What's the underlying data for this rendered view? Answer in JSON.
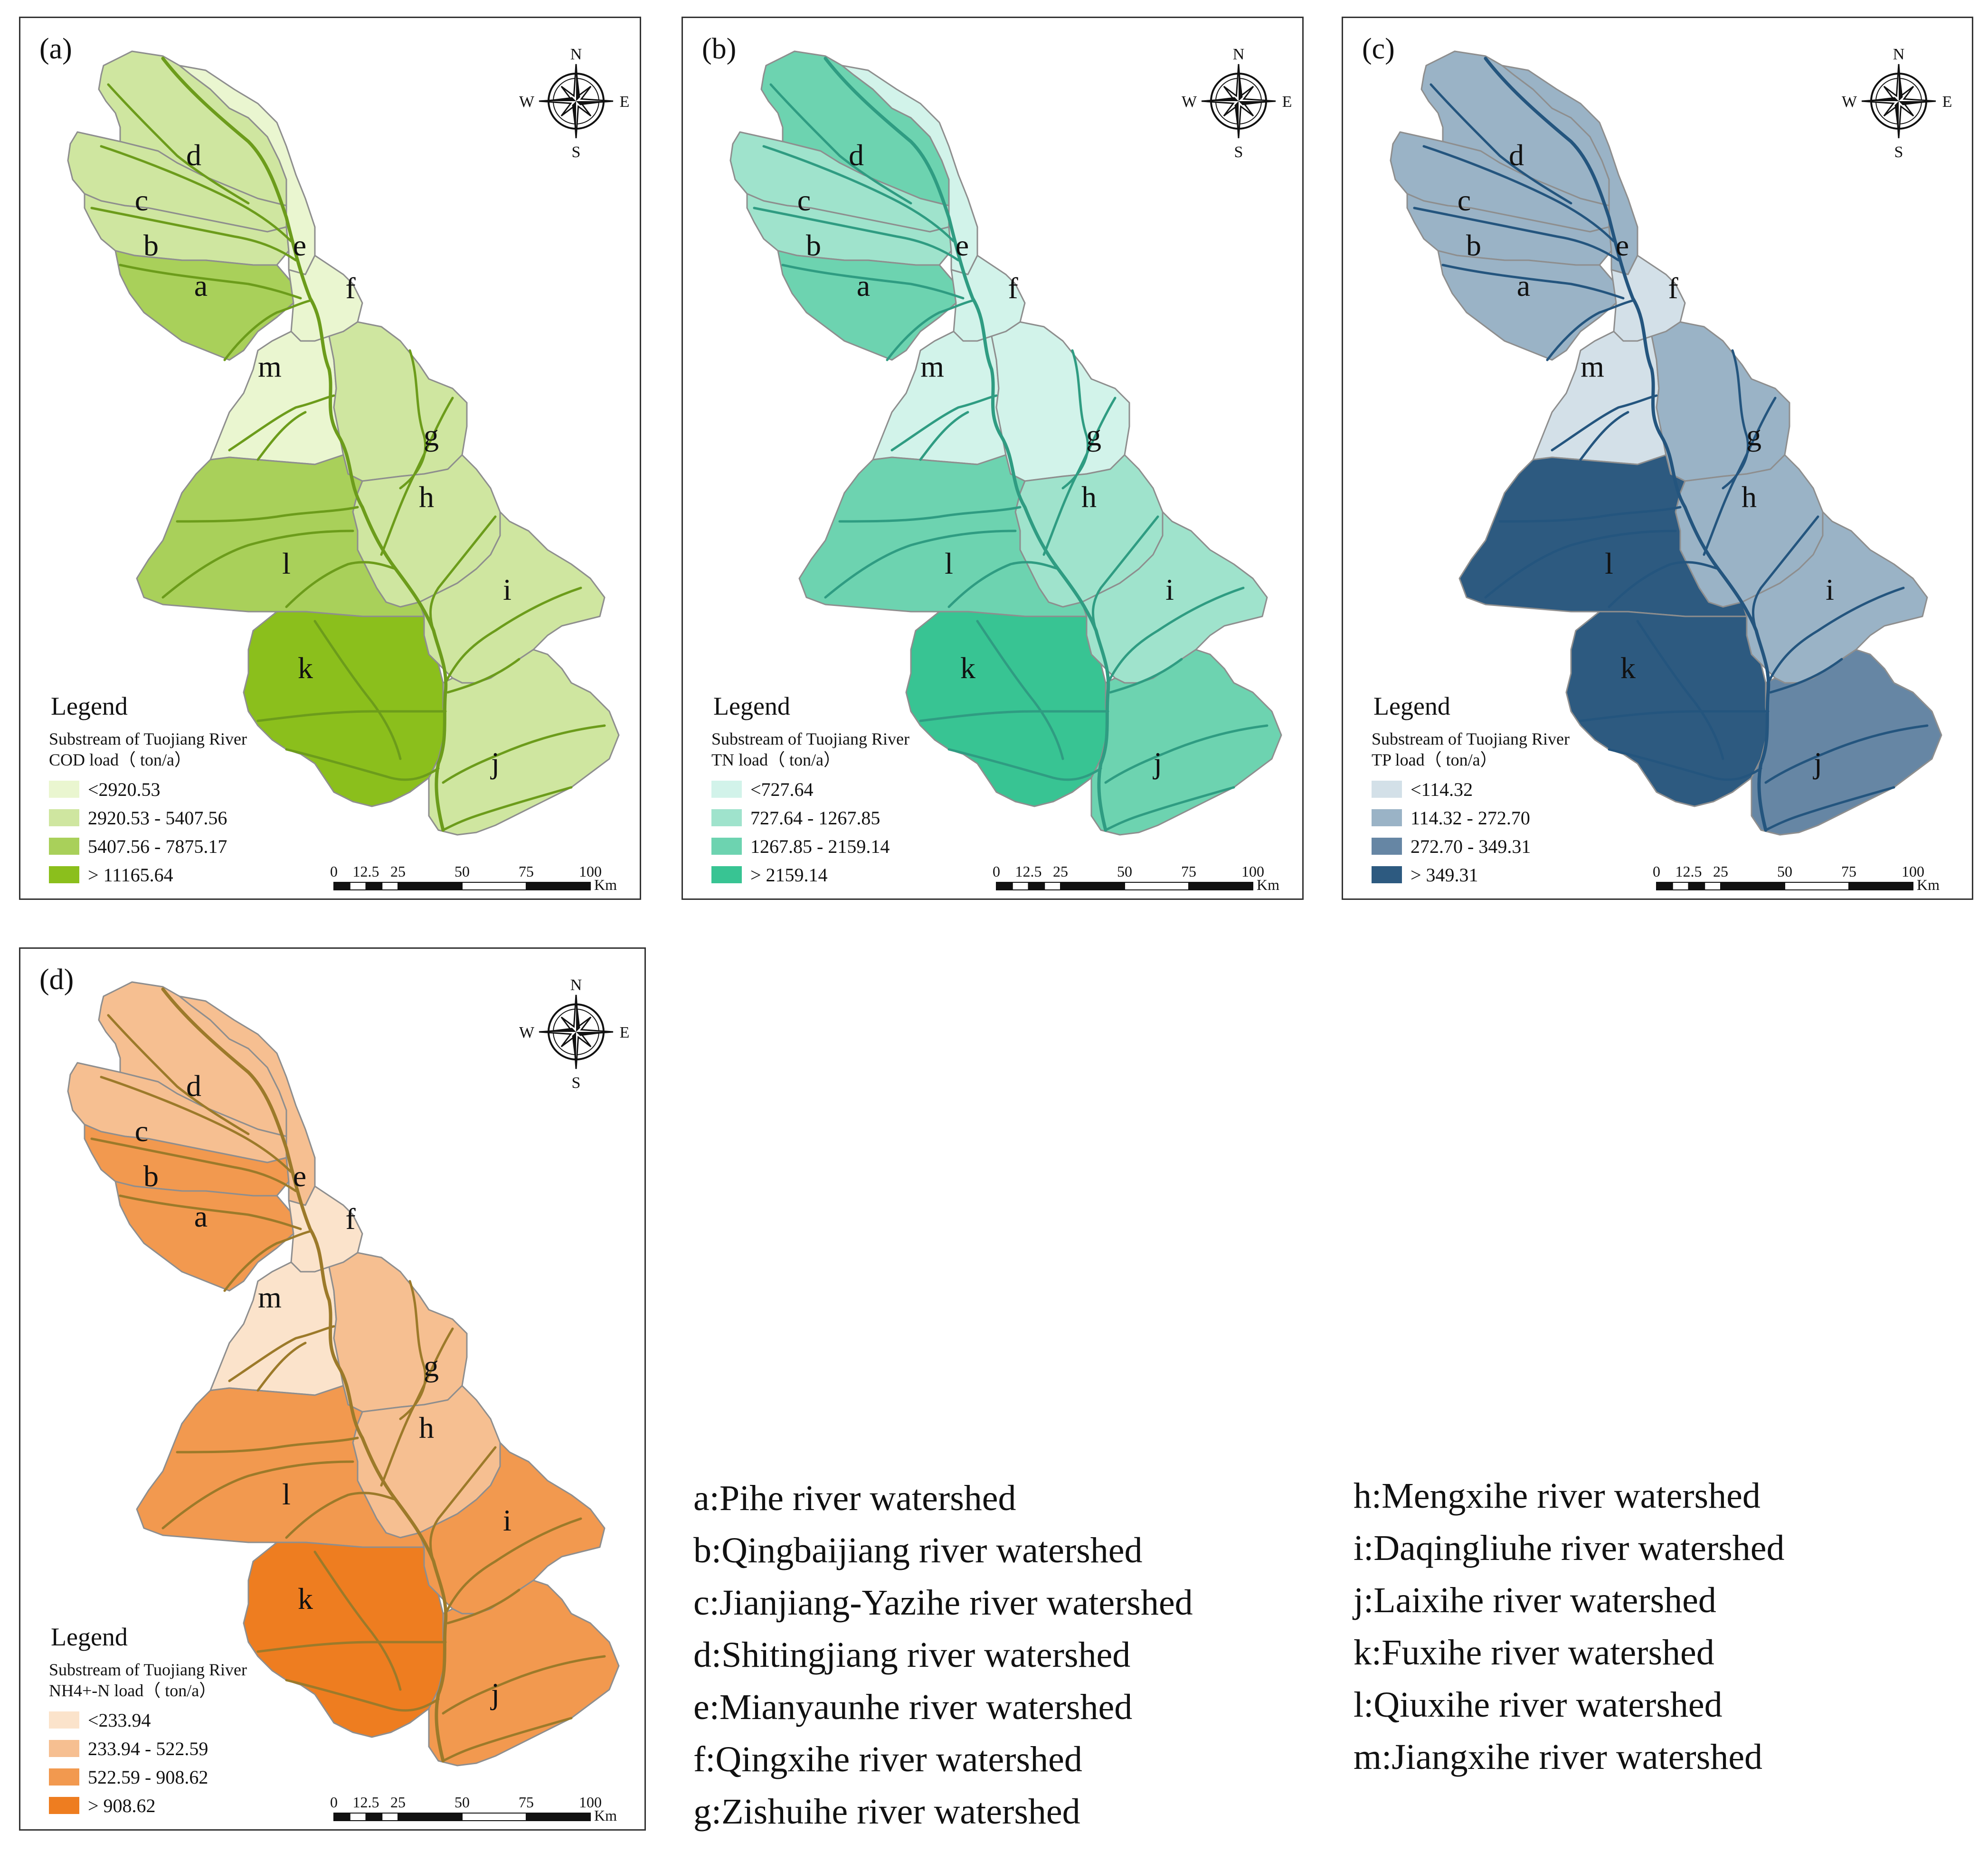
{
  "panels": [
    {
      "id": "a",
      "label": "(a)",
      "legend_heading": "Legend",
      "legend_line1": "Substream of Tuojiang River",
      "legend_line2": "COD load（ ton/a）",
      "classes": [
        "<2920.53",
        "2920.53 - 5407.56",
        "5407.56 - 7875.17",
        "> 11165.64"
      ],
      "colors": [
        "#eaf6d0",
        "#cfe6a0",
        "#a9d05a",
        "#8bbf1c"
      ],
      "river_color": "#6c9c1b",
      "region_class": {
        "a": 2,
        "b": 1,
        "c": 1,
        "d": 1,
        "e": 0,
        "f": 0,
        "g": 1,
        "h": 1,
        "i": 1,
        "j": 1,
        "k": 3,
        "l": 2,
        "m": 0
      }
    },
    {
      "id": "b",
      "label": "(b)",
      "legend_heading": "Legend",
      "legend_line1": "Substream of Tuojiang River",
      "legend_line2": "TN load（ ton/a）",
      "classes": [
        "<727.64",
        "727.64 - 1267.85",
        "1267.85 - 2159.14",
        "> 2159.14"
      ],
      "colors": [
        "#d2f3ea",
        "#9fe3cc",
        "#6dd3b0",
        "#38c493"
      ],
      "river_color": "#2f9c82",
      "region_class": {
        "a": 2,
        "b": 1,
        "c": 1,
        "d": 2,
        "e": 0,
        "f": 0,
        "g": 0,
        "h": 1,
        "i": 1,
        "j": 2,
        "k": 3,
        "l": 2,
        "m": 0
      }
    },
    {
      "id": "c",
      "label": "(c)",
      "legend_heading": "Legend",
      "legend_line1": "Substream of Tuojiang River",
      "legend_line2": "TP load（ ton/a）",
      "classes": [
        "<114.32",
        "114.32 - 272.70",
        "272.70 - 349.31",
        "> 349.31"
      ],
      "colors": [
        "#d3e0e8",
        "#9ab3c6",
        "#6686a4",
        "#2d5a80"
      ],
      "river_color": "#24557e",
      "region_class": {
        "a": 1,
        "b": 1,
        "c": 1,
        "d": 1,
        "e": 1,
        "f": 0,
        "g": 1,
        "h": 1,
        "i": 1,
        "j": 2,
        "k": 3,
        "l": 3,
        "m": 0
      }
    },
    {
      "id": "d",
      "label": "(d)",
      "legend_heading": "Legend",
      "legend_line1": "Substream of Tuojiang River",
      "legend_line2": "NH4+-N load（ ton/a）",
      "classes": [
        "<233.94",
        "233.94 - 522.59",
        "522.59 - 908.62",
        "> 908.62"
      ],
      "colors": [
        "#fbe3cb",
        "#f6bf91",
        "#f2994f",
        "#ee7d20"
      ],
      "river_color": "#9c7a2a",
      "region_class": {
        "a": 2,
        "b": 2,
        "c": 1,
        "d": 1,
        "e": 1,
        "f": 0,
        "g": 1,
        "h": 1,
        "i": 2,
        "j": 2,
        "k": 3,
        "l": 2,
        "m": 0
      }
    }
  ],
  "compass": {
    "n": "N",
    "s": "S",
    "e": "E",
    "w": "W"
  },
  "scalebar": {
    "ticks": [
      "0",
      "12.5",
      "25",
      "50",
      "75",
      "100"
    ],
    "unit": "Km"
  },
  "watersheds_left": [
    "a:Pihe river watershed",
    "b:Qingbaijiang river watershed",
    "c:Jianjiang-Yazihe river watershed",
    "d:Shitingjiang river watershed",
    "e:Mianyaunhe river watershed",
    "f:Qingxihe river watershed",
    "g:Zishuihe river watershed"
  ],
  "watersheds_right": [
    "h:Mengxihe river watershed",
    "i:Daqingliuhe river watershed",
    "j:Laixihe river watershed",
    "k:Fuxihe river watershed",
    "l:Qiuxihe river watershed",
    "m:Jiangxihe river watershed"
  ]
}
